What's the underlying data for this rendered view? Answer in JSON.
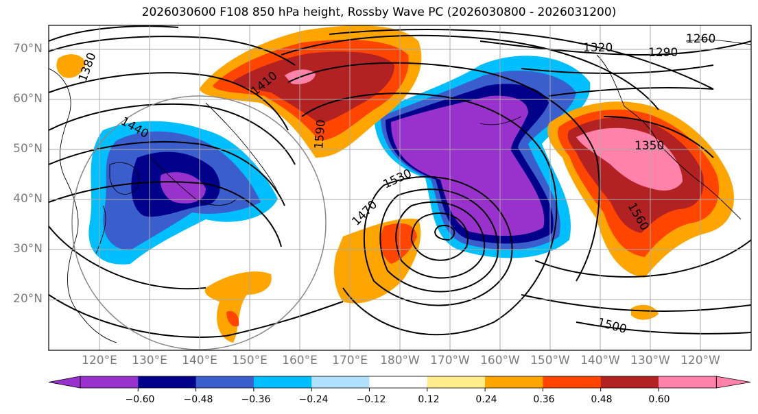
{
  "title": "2026030600 F108 850 hPa height, Rossby Wave PC (2026030800 - 2026031200)",
  "lat_labels": [
    "70°N",
    "60°N",
    "50°N",
    "40°N",
    "30°N",
    "20°N"
  ],
  "lon_labels": [
    "120°E",
    "130°E",
    "140°E",
    "150°E",
    "160°E",
    "170°E",
    "180°W",
    "170°W",
    "160°W",
    "150°W",
    "140°W",
    "130°W",
    "120°W"
  ],
  "colorbar": {
    "colors": [
      "#9932cc",
      "#00008b",
      "#3a5fcd",
      "#00bfff",
      "#b0e2ff",
      "#ffffff",
      "#ffec8b",
      "#ffa500",
      "#ff4500",
      "#b22222",
      "#ff82ab"
    ],
    "tick_labels": [
      "−0.60",
      "−0.48",
      "−0.36",
      "−0.24",
      "−0.12",
      "0.12",
      "0.24",
      "0.36",
      "0.48",
      "0.60"
    ]
  },
  "contour_labels": [
    "1260",
    "1290",
    "1320",
    "1350",
    "1380",
    "1410",
    "1440",
    "1470",
    "1500",
    "1530",
    "1560",
    "1590"
  ],
  "legend_colors": {
    "neg_strong": "#9932cc",
    "neg_mid": "#3a5fcd",
    "pos_mid": "#ffa500",
    "pos_strong": "#b22222"
  }
}
